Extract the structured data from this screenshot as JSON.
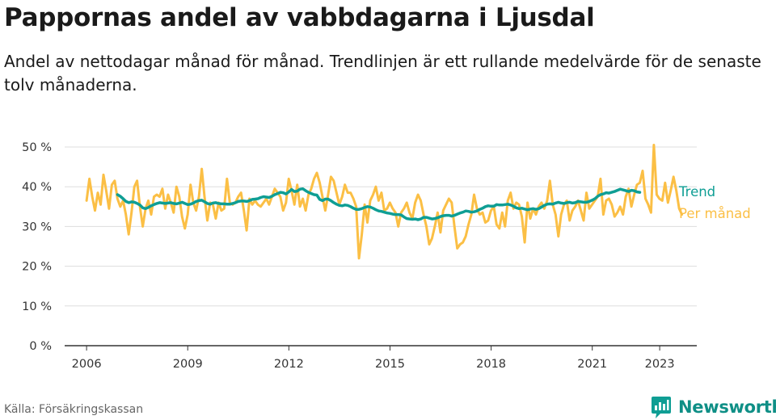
{
  "title": "Pappornas andel av vabbdagarna i Ljusdal",
  "subtitle": "Andel av nettodagar månad för månad. Trendlinjen är ett rullande medelvärde för de senaste tolv månaderna.",
  "source": "Källa: Försäkringskassan",
  "brand": "Newsworthy",
  "colors": {
    "trend": "#0f9e94",
    "monthly": "#fbbf45",
    "grid": "#dddddd",
    "axis": "#333333"
  },
  "chart_data": {
    "type": "line",
    "ylim": [
      0,
      50
    ],
    "y_ticks": [
      "0 %",
      "10 %",
      "20 %",
      "30 %",
      "40 %",
      "50 %"
    ],
    "y_tick_values": [
      0,
      10,
      20,
      30,
      40,
      50
    ],
    "x_ticks": [
      "2006",
      "2009",
      "2012",
      "2015",
      "2018",
      "2021",
      "2023"
    ],
    "x_tick_values": [
      2006,
      2009,
      2012,
      2015,
      2018,
      2021,
      2023
    ],
    "grid": "horizontal",
    "legend": "line-end labels",
    "series": [
      {
        "name": "Per månad",
        "color": "#fbbf45",
        "x_start": 2006.0,
        "step": 0.0833,
        "values": [
          36.5,
          42.0,
          37.5,
          34.0,
          38.5,
          35.5,
          43.0,
          39.0,
          34.5,
          40.5,
          41.5,
          37.0,
          35.0,
          36.5,
          33.0,
          28.0,
          33.5,
          40.0,
          41.5,
          35.0,
          30.0,
          34.5,
          36.5,
          33.0,
          37.5,
          38.0,
          37.5,
          39.5,
          34.5,
          38.0,
          36.0,
          33.5,
          40.0,
          37.5,
          32.5,
          29.5,
          33.0,
          40.5,
          36.0,
          34.0,
          37.5,
          44.5,
          37.5,
          31.5,
          36.0,
          35.5,
          32.0,
          36.0,
          34.0,
          34.5,
          42.0,
          36.0,
          35.5,
          36.0,
          37.5,
          38.5,
          34.0,
          29.0,
          37.0,
          35.5,
          36.5,
          35.5,
          35.0,
          36.0,
          37.0,
          35.5,
          37.5,
          39.5,
          38.5,
          37.5,
          34.0,
          36.0,
          42.0,
          39.0,
          35.5,
          40.5,
          35.0,
          37.0,
          34.0,
          38.0,
          39.5,
          42.0,
          43.5,
          41.0,
          37.5,
          34.0,
          38.0,
          42.5,
          41.5,
          38.5,
          35.5,
          37.5,
          40.5,
          38.5,
          38.5,
          37.0,
          35.0,
          22.0,
          28.0,
          35.5,
          31.0,
          36.5,
          38.0,
          40.0,
          36.5,
          38.5,
          34.0,
          34.5,
          36.0,
          34.5,
          33.5,
          30.0,
          33.5,
          34.5,
          36.0,
          33.5,
          32.0,
          36.0,
          38.0,
          36.5,
          33.0,
          30.0,
          25.5,
          27.0,
          30.0,
          33.5,
          28.5,
          34.0,
          35.5,
          37.0,
          36.0,
          30.0,
          24.5,
          25.5,
          26.0,
          27.5,
          30.5,
          33.0,
          38.0,
          34.5,
          33.0,
          33.5,
          31.0,
          31.5,
          34.0,
          35.0,
          30.5,
          29.5,
          33.5,
          30.0,
          36.5,
          38.5,
          34.5,
          36.0,
          35.5,
          32.5,
          26.0,
          36.0,
          32.0,
          34.5,
          33.0,
          35.0,
          36.0,
          34.5,
          36.5,
          41.5,
          35.5,
          33.0,
          27.5,
          33.0,
          35.5,
          36.5,
          31.5,
          34.0,
          35.0,
          36.5,
          34.0,
          31.5,
          38.5,
          34.5,
          35.5,
          36.5,
          37.5,
          42.0,
          33.0,
          36.5,
          37.0,
          35.5,
          32.5,
          33.5,
          35.0,
          33.0,
          37.5,
          39.5,
          35.0,
          38.0,
          40.5,
          41.0,
          44.0,
          37.0,
          35.5,
          33.5,
          50.5,
          38.0,
          37.0,
          36.5,
          41.0,
          36.0,
          39.0,
          42.5,
          39.0,
          34.5,
          33.0
        ]
      },
      {
        "name": "Trend",
        "color": "#0f9e94",
        "x_start": 2006.917,
        "step": 0.0833,
        "values": [
          38.0,
          37.6,
          37.0,
          36.3,
          36.0,
          36.2,
          36.1,
          35.8,
          35.4,
          34.7,
          34.5,
          34.8,
          35.2,
          35.5,
          35.8,
          36.0,
          35.9,
          35.8,
          35.9,
          36.0,
          35.8,
          35.7,
          35.9,
          36.1,
          35.8,
          35.5,
          35.6,
          35.9,
          36.3,
          36.5,
          36.6,
          36.2,
          35.8,
          35.6,
          35.9,
          36.0,
          35.8,
          35.7,
          35.7,
          35.6,
          35.6,
          35.8,
          36.0,
          36.3,
          36.4,
          36.4,
          36.3,
          36.5,
          36.8,
          36.9,
          37.0,
          37.3,
          37.5,
          37.4,
          37.3,
          37.6,
          38.0,
          38.3,
          38.6,
          38.5,
          38.2,
          38.7,
          39.3,
          38.8,
          38.9,
          39.4,
          39.5,
          39.0,
          38.6,
          38.3,
          38.0,
          37.9,
          36.8,
          36.5,
          36.9,
          36.9,
          36.5,
          36.0,
          35.6,
          35.3,
          35.2,
          35.4,
          35.3,
          35.0,
          34.6,
          34.3,
          34.3,
          34.5,
          34.8,
          35.0,
          34.9,
          34.6,
          34.2,
          33.9,
          33.8,
          33.6,
          33.4,
          33.3,
          33.1,
          33.0,
          33.0,
          32.9,
          32.4,
          32.0,
          31.9,
          31.8,
          31.9,
          31.7,
          31.9,
          32.3,
          32.3,
          32.1,
          31.9,
          32.0,
          32.2,
          32.5,
          32.7,
          32.8,
          32.8,
          32.6,
          32.8,
          33.1,
          33.4,
          33.6,
          33.9,
          33.8,
          33.6,
          33.7,
          33.9,
          34.3,
          34.6,
          35.0,
          35.2,
          35.1,
          35.1,
          35.5,
          35.4,
          35.4,
          35.5,
          35.6,
          35.4,
          35.1,
          34.7,
          34.5,
          34.6,
          34.4,
          34.2,
          34.4,
          34.5,
          34.3,
          34.5,
          34.9,
          35.3,
          35.6,
          35.7,
          35.6,
          35.9,
          36.1,
          35.9,
          35.8,
          36.0,
          36.1,
          35.9,
          36.0,
          36.3,
          36.2,
          36.1,
          36.1,
          36.3,
          36.6,
          37.0,
          37.6,
          38.0,
          38.2,
          38.5,
          38.4,
          38.6,
          38.8,
          39.1,
          39.4,
          39.2,
          39.0,
          38.8,
          39.1,
          39.0,
          38.7,
          38.6
        ]
      }
    ]
  }
}
